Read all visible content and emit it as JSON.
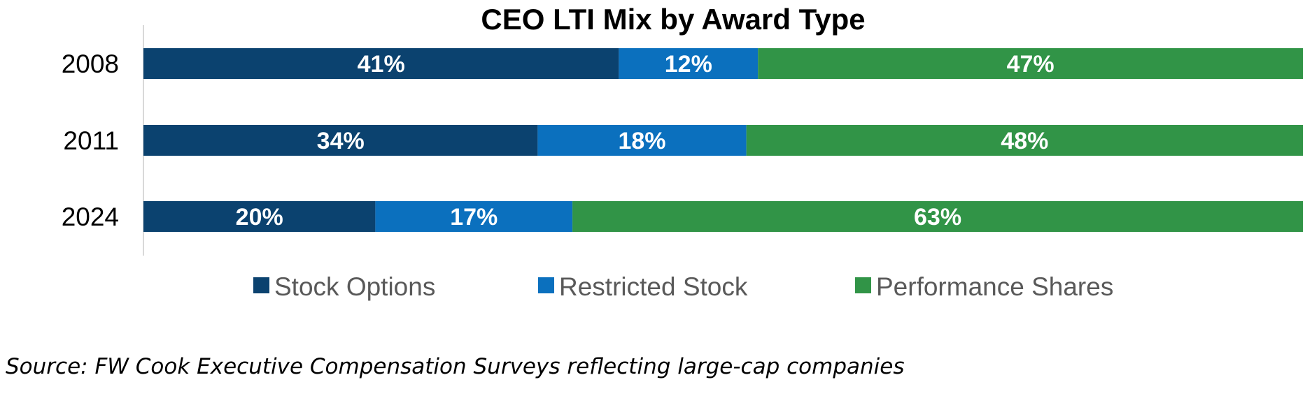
{
  "chart_data": {
    "type": "bar",
    "orientation": "horizontal",
    "stacked": true,
    "title": "CEO LTI Mix by Award Type",
    "categories": [
      "2008",
      "2011",
      "2024"
    ],
    "series": [
      {
        "name": "Stock Options",
        "color": "#0b426f",
        "values": [
          41,
          34,
          20
        ],
        "labels": [
          "41%",
          "34%",
          "20%"
        ]
      },
      {
        "name": "Restricted Stock",
        "color": "#0b70be",
        "values": [
          12,
          18,
          17
        ],
        "labels": [
          "12%",
          "18%",
          "17%"
        ]
      },
      {
        "name": "Performance Shares",
        "color": "#319447",
        "values": [
          47,
          48,
          63
        ],
        "labels": [
          "47%",
          "48%",
          "63%"
        ]
      }
    ],
    "xlim": [
      0,
      100
    ],
    "grid": false,
    "legend_position": "bottom",
    "source": "Source: FW Cook Executive Compensation Surveys reflecting large-cap companies"
  }
}
